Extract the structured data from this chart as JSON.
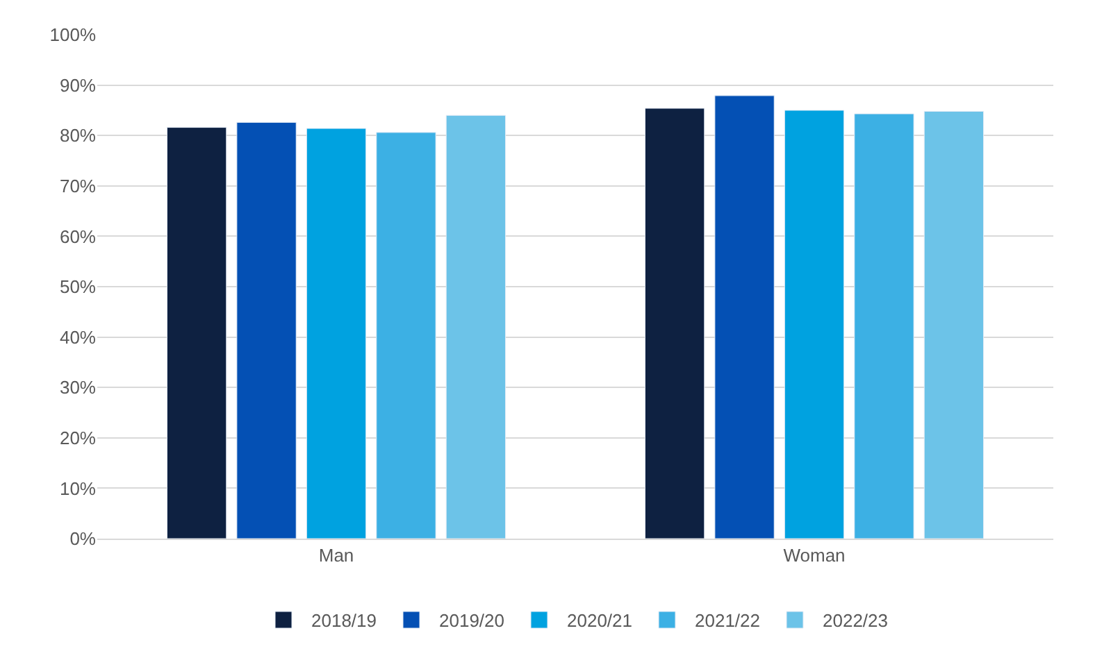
{
  "chart_data": {
    "type": "bar",
    "categories": [
      "Man",
      "Woman"
    ],
    "series": [
      {
        "name": "2018/19",
        "color": "#0e2141",
        "values": [
          81.6,
          85.4
        ]
      },
      {
        "name": "2019/20",
        "color": "#0450b4",
        "values": [
          82.6,
          87.9
        ]
      },
      {
        "name": "2020/21",
        "color": "#00a2e0",
        "values": [
          81.4,
          85.0
        ]
      },
      {
        "name": "2021/22",
        "color": "#3cb0e4",
        "values": [
          80.6,
          84.3
        ]
      },
      {
        "name": "2022/23",
        "color": "#6cc3e8",
        "values": [
          84.0,
          84.8
        ]
      }
    ],
    "ylim": [
      0,
      100
    ],
    "yticks": [
      {
        "value": 0,
        "label": "0%"
      },
      {
        "value": 10,
        "label": "10%"
      },
      {
        "value": 20,
        "label": "20%"
      },
      {
        "value": 30,
        "label": "30%"
      },
      {
        "value": 40,
        "label": "40%"
      },
      {
        "value": 50,
        "label": "50%"
      },
      {
        "value": 60,
        "label": "60%"
      },
      {
        "value": 70,
        "label": "70%"
      },
      {
        "value": 80,
        "label": "80%"
      },
      {
        "value": 90,
        "label": "90%"
      },
      {
        "value": 100,
        "label": "100%"
      }
    ],
    "grid": "y",
    "legend": "bottom"
  }
}
